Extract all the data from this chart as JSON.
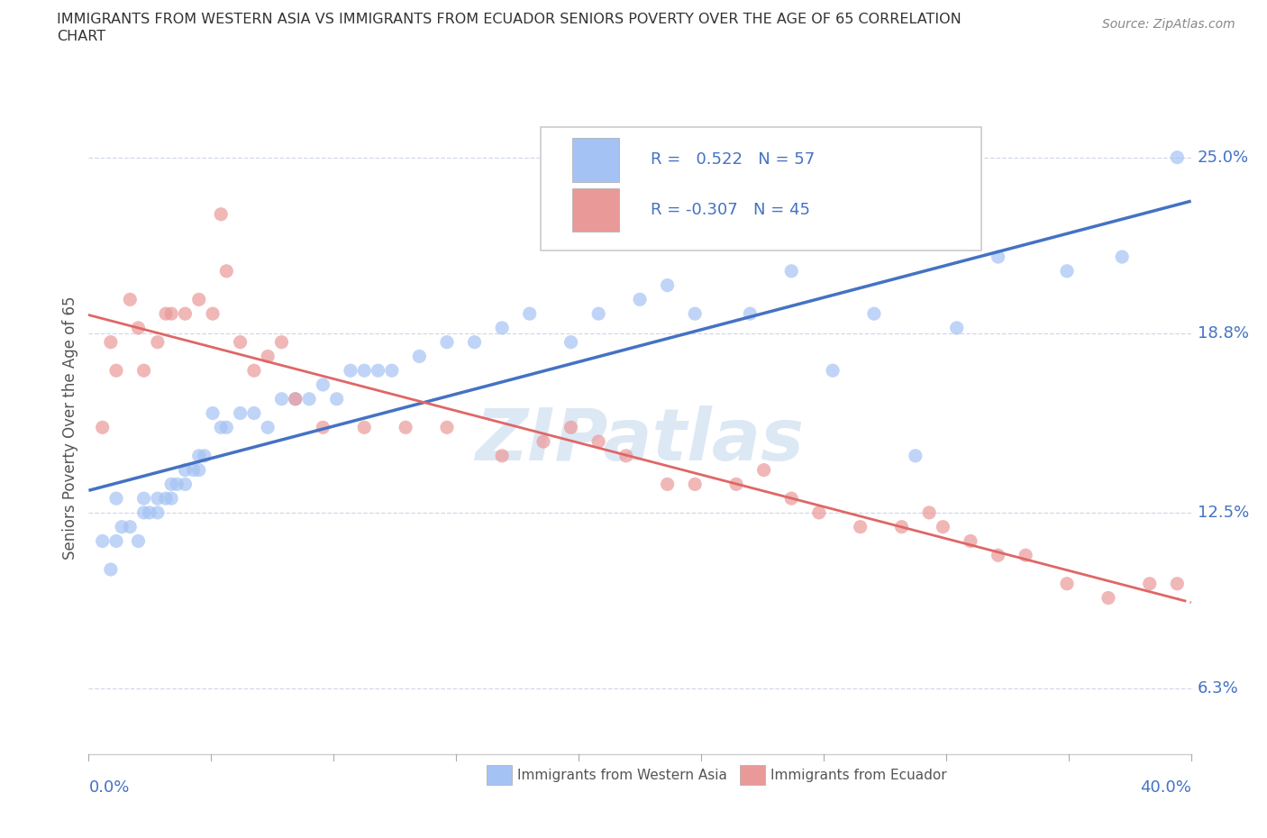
{
  "title_line1": "IMMIGRANTS FROM WESTERN ASIA VS IMMIGRANTS FROM ECUADOR SENIORS POVERTY OVER THE AGE OF 65 CORRELATION",
  "title_line2": "CHART",
  "source_text": "Source: ZipAtlas.com",
  "ylabel": "Seniors Poverty Over the Age of 65",
  "xmin": 0.0,
  "xmax": 0.4,
  "ymin": 0.04,
  "ymax": 0.27,
  "yticks": [
    0.063,
    0.125,
    0.188,
    0.25
  ],
  "ytick_labels": [
    "6.3%",
    "12.5%",
    "18.8%",
    "25.0%"
  ],
  "xtick_labels_bottom": [
    "0.0%",
    "40.0%"
  ],
  "western_asia_color": "#a4c2f4",
  "ecuador_color": "#ea9999",
  "western_asia_R": 0.522,
  "western_asia_N": 57,
  "ecuador_R": -0.307,
  "ecuador_N": 45,
  "western_asia_line_color": "#4472c4",
  "ecuador_line_color": "#e06666",
  "legend_text_color": "#4472c4",
  "grid_color": "#d0d8e8",
  "watermark": "ZIPatlas",
  "western_asia_x": [
    0.005,
    0.008,
    0.01,
    0.01,
    0.012,
    0.015,
    0.018,
    0.02,
    0.02,
    0.022,
    0.025,
    0.025,
    0.028,
    0.03,
    0.03,
    0.032,
    0.035,
    0.035,
    0.038,
    0.04,
    0.04,
    0.042,
    0.045,
    0.048,
    0.05,
    0.055,
    0.06,
    0.065,
    0.07,
    0.075,
    0.08,
    0.085,
    0.09,
    0.095,
    0.1,
    0.105,
    0.11,
    0.12,
    0.13,
    0.14,
    0.15,
    0.16,
    0.175,
    0.185,
    0.2,
    0.21,
    0.22,
    0.24,
    0.255,
    0.27,
    0.285,
    0.3,
    0.315,
    0.33,
    0.355,
    0.375,
    0.395
  ],
  "western_asia_y": [
    0.115,
    0.105,
    0.13,
    0.115,
    0.12,
    0.12,
    0.115,
    0.125,
    0.13,
    0.125,
    0.125,
    0.13,
    0.13,
    0.13,
    0.135,
    0.135,
    0.135,
    0.14,
    0.14,
    0.14,
    0.145,
    0.145,
    0.16,
    0.155,
    0.155,
    0.16,
    0.16,
    0.155,
    0.165,
    0.165,
    0.165,
    0.17,
    0.165,
    0.175,
    0.175,
    0.175,
    0.175,
    0.18,
    0.185,
    0.185,
    0.19,
    0.195,
    0.185,
    0.195,
    0.2,
    0.205,
    0.195,
    0.195,
    0.21,
    0.175,
    0.195,
    0.145,
    0.19,
    0.215,
    0.21,
    0.215,
    0.25
  ],
  "ecuador_x": [
    0.005,
    0.008,
    0.01,
    0.015,
    0.018,
    0.02,
    0.025,
    0.028,
    0.03,
    0.035,
    0.04,
    0.045,
    0.048,
    0.05,
    0.055,
    0.06,
    0.065,
    0.07,
    0.075,
    0.085,
    0.1,
    0.115,
    0.13,
    0.15,
    0.165,
    0.175,
    0.185,
    0.195,
    0.21,
    0.22,
    0.235,
    0.245,
    0.255,
    0.265,
    0.28,
    0.295,
    0.305,
    0.31,
    0.32,
    0.33,
    0.34,
    0.355,
    0.37,
    0.385,
    0.395
  ],
  "ecuador_y": [
    0.155,
    0.185,
    0.175,
    0.2,
    0.19,
    0.175,
    0.185,
    0.195,
    0.195,
    0.195,
    0.2,
    0.195,
    0.23,
    0.21,
    0.185,
    0.175,
    0.18,
    0.185,
    0.165,
    0.155,
    0.155,
    0.155,
    0.155,
    0.145,
    0.15,
    0.155,
    0.15,
    0.145,
    0.135,
    0.135,
    0.135,
    0.14,
    0.13,
    0.125,
    0.12,
    0.12,
    0.125,
    0.12,
    0.115,
    0.11,
    0.11,
    0.1,
    0.095,
    0.1,
    0.1
  ]
}
